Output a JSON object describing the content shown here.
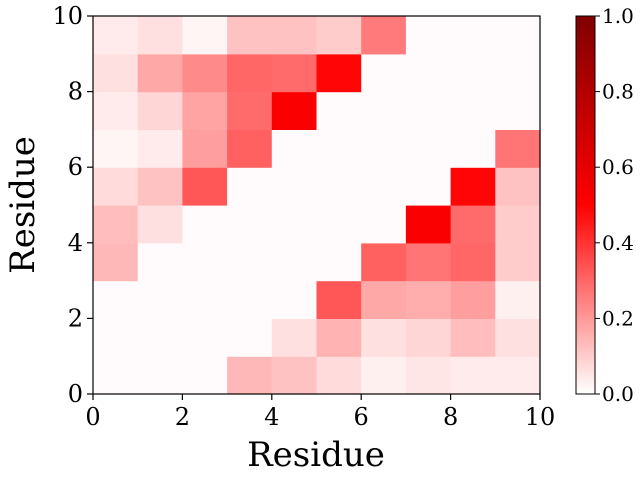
{
  "chart_data": {
    "type": "heatmap",
    "title": "",
    "xlabel": "Residue",
    "ylabel": "Residue",
    "xlim": [
      0,
      10
    ],
    "ylim": [
      0,
      10
    ],
    "x_ticks": [
      "0",
      "2",
      "4",
      "6",
      "8",
      "10"
    ],
    "y_ticks": [
      "0",
      "2",
      "4",
      "6",
      "8",
      "10"
    ],
    "colorbar": {
      "range": [
        0,
        1
      ],
      "ticks": [
        "0.0",
        "0.2",
        "0.4",
        "0.6",
        "0.8",
        "1.0"
      ],
      "colors": [
        "#ffffff",
        "#ff0000",
        "#800000"
      ]
    },
    "grid": false,
    "matrix_rows_bottom_to_top": [
      [
        0.0,
        0.0,
        0.0,
        0.14,
        0.12,
        0.07,
        0.03,
        0.05,
        0.04,
        0.04
      ],
      [
        0.0,
        0.0,
        0.0,
        0.0,
        0.06,
        0.15,
        0.06,
        0.08,
        0.13,
        0.06
      ],
      [
        0.0,
        0.0,
        0.0,
        0.0,
        0.0,
        0.33,
        0.17,
        0.16,
        0.19,
        0.03
      ],
      [
        0.14,
        0.0,
        0.0,
        0.0,
        0.0,
        0.0,
        0.31,
        0.27,
        0.3,
        0.1
      ],
      [
        0.13,
        0.06,
        0.0,
        0.0,
        0.0,
        0.0,
        0.0,
        0.52,
        0.29,
        0.1
      ],
      [
        0.07,
        0.12,
        0.33,
        0.0,
        0.0,
        0.0,
        0.0,
        0.0,
        0.49,
        0.12
      ],
      [
        0.02,
        0.04,
        0.19,
        0.31,
        0.0,
        0.0,
        0.0,
        0.0,
        0.0,
        0.27
      ],
      [
        0.04,
        0.08,
        0.18,
        0.29,
        0.52,
        0.0,
        0.0,
        0.0,
        0.0,
        0.0
      ],
      [
        0.06,
        0.17,
        0.23,
        0.3,
        0.29,
        0.49,
        0.0,
        0.0,
        0.0,
        0.0
      ],
      [
        0.04,
        0.06,
        0.02,
        0.12,
        0.12,
        0.1,
        0.26,
        0.0,
        0.0,
        0.0
      ]
    ]
  }
}
